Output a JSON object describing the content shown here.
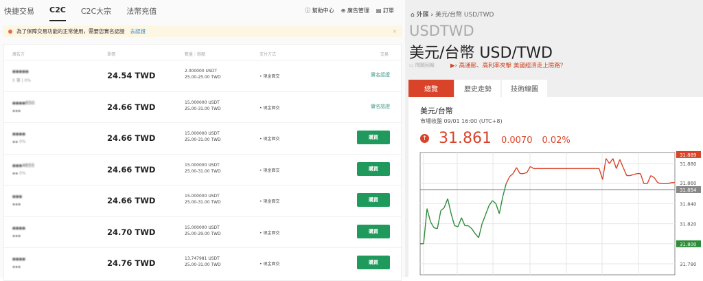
{
  "left": {
    "tabs": [
      "快捷交易",
      "C2C",
      "C2C大宗",
      "法幣充值"
    ],
    "active_tab": "C2C",
    "top_links": [
      "幫助中心",
      "廣告管理",
      "訂單"
    ],
    "banner": {
      "text": "為了保障交易功能的正常使用，需要您實名認證",
      "link": "去認證"
    },
    "headers": [
      "廣告方",
      "單價",
      "數量｜限額",
      "支付方式",
      "交易"
    ],
    "rows": [
      {
        "name": "▪▪▪▪▪",
        "stats": "0 筆 | 0%",
        "price": "24.54 TWD",
        "qty": "2.000000 USDT",
        "limit": "25.00-25.00 TWD",
        "pay": "• 現金面交",
        "action": "實名認證",
        "type": "kyc"
      },
      {
        "name": "▪▪▪▪650",
        "stats": "▪▪▪",
        "price": "24.66 TWD",
        "qty": "15.000000 USDT",
        "limit": "25.00-31.00 TWD",
        "pay": "• 現金面交",
        "action": "實名認證",
        "type": "kyc"
      },
      {
        "name": "▪▪▪▪",
        "stats": "▪▪ 0%",
        "price": "24.66 TWD",
        "qty": "15.000000 USDT",
        "limit": "25.00-31.00 TWD",
        "pay": "• 現金面交",
        "action": "購買",
        "type": "buy"
      },
      {
        "name": "▪▪▪4655",
        "stats": "▪▪ 0%",
        "price": "24.66 TWD",
        "qty": "15.000000 USDT",
        "limit": "25.00-31.00 TWD",
        "pay": "• 現金面交",
        "action": "購買",
        "type": "buy"
      },
      {
        "name": "▪▪▪",
        "stats": "▪▪▪",
        "price": "24.66 TWD",
        "qty": "15.000000 USDT",
        "limit": "25.00-31.00 TWD",
        "pay": "• 現金面交",
        "action": "購買",
        "type": "buy"
      },
      {
        "name": "▪▪▪▪",
        "stats": "▪▪▪",
        "price": "24.70 TWD",
        "qty": "15.000000 USDT",
        "limit": "25.00-29.00 TWD",
        "pay": "• 現金面交",
        "action": "購買",
        "type": "buy"
      },
      {
        "name": "▪▪▪▪",
        "stats": "▪▪▪",
        "price": "24.76 TWD",
        "qty": "13.747981 USDT",
        "limit": "25.00-31.00 TWD",
        "pay": "• 現金面交",
        "action": "購買",
        "type": "buy"
      }
    ]
  },
  "right": {
    "breadcrumb_home": "外匯",
    "breadcrumb_sep": "›",
    "breadcrumb_current": "美元/台幣 USD/TWD",
    "symbol": "USDTWD",
    "title": "美元/台幣 USD/TWD",
    "report": "問題回報",
    "news": "高通膨、高利率夾擊 美國經濟走上險路？",
    "tabs": [
      "總覽",
      "歷史走勢",
      "技術線圖"
    ],
    "pair": "美元/台幣",
    "market": "市場收盤 09/01 16:00 (UTC+8)",
    "price": "31.861",
    "change": "0.0070",
    "change_pct": "0.02%",
    "up_color": "#d9432a",
    "down_color": "#2e8b3a"
  },
  "chart_data": {
    "type": "line",
    "ylim": [
      31.769,
      31.891
    ],
    "yticks": [
      "31.880",
      "31.860",
      "31.840",
      "31.820",
      "31.800",
      "31.780"
    ],
    "prev_close": 31.854,
    "high": 31.889,
    "low": 31.8,
    "labels": {
      "high": "31.889",
      "prev_close": "31.854",
      "low": "31.800"
    },
    "grid": true,
    "values": [
      31.8,
      31.8,
      31.835,
      31.822,
      31.816,
      31.815,
      31.833,
      31.836,
      31.845,
      31.83,
      31.818,
      31.817,
      31.826,
      31.818,
      31.818,
      31.815,
      31.81,
      31.806,
      31.82,
      31.829,
      31.838,
      31.843,
      31.84,
      31.83,
      31.847,
      31.86,
      31.867,
      31.87,
      31.876,
      31.87,
      31.87,
      31.871,
      31.877,
      31.875,
      31.875,
      31.875,
      31.875,
      31.875,
      31.875,
      31.875,
      31.875,
      31.875,
      31.875,
      31.875,
      31.875,
      31.875,
      31.875,
      31.875,
      31.875,
      31.875,
      31.875,
      31.875,
      31.875,
      31.864,
      31.885,
      31.88,
      31.885,
      31.875,
      31.884,
      31.876,
      31.868,
      31.868,
      31.869,
      31.87,
      31.87,
      31.86,
      31.86,
      31.868,
      31.866,
      31.861,
      31.86,
      31.86,
      31.86,
      31.861,
      31.861
    ]
  }
}
